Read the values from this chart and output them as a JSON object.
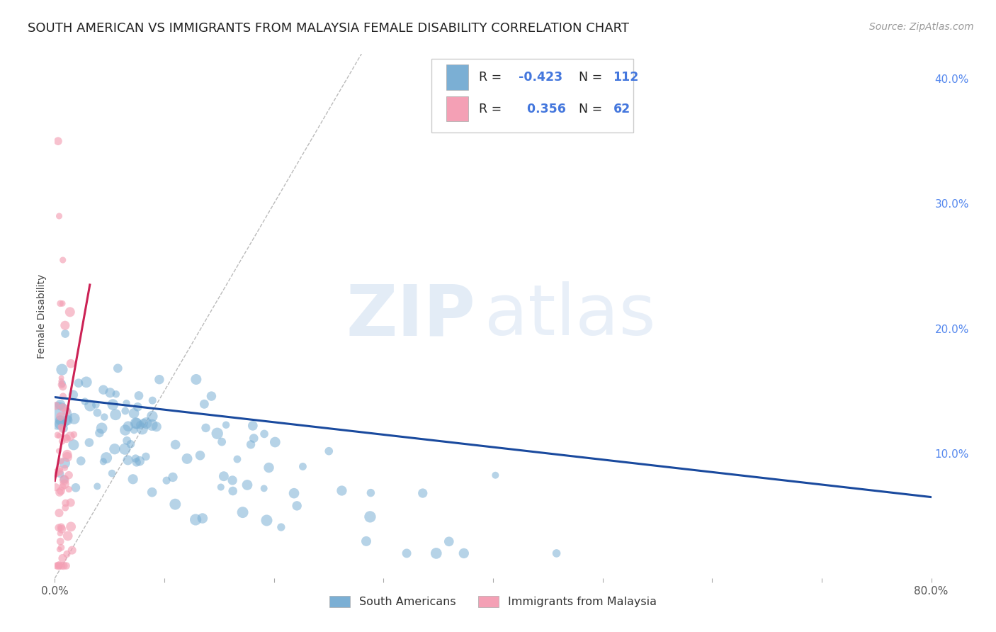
{
  "title": "SOUTH AMERICAN VS IMMIGRANTS FROM MALAYSIA FEMALE DISABILITY CORRELATION CHART",
  "source": "Source: ZipAtlas.com",
  "ylabel": "Female Disability",
  "xlim": [
    0.0,
    0.8
  ],
  "ylim": [
    0.0,
    0.42
  ],
  "yticks_right": [
    0.1,
    0.2,
    0.3,
    0.4
  ],
  "ytick_right_labels": [
    "10.0%",
    "20.0%",
    "30.0%",
    "40.0%"
  ],
  "blue_color": "#7bafd4",
  "pink_color": "#f4a0b5",
  "blue_line_color": "#1a4a9e",
  "pink_line_color": "#cc2255",
  "blue_R": -0.423,
  "blue_N": 112,
  "pink_R": 0.356,
  "pink_N": 62,
  "legend_label_blue": "South Americans",
  "legend_label_pink": "Immigrants from Malaysia",
  "watermark_zip": "ZIP",
  "watermark_atlas": "atlas",
  "background_color": "#ffffff",
  "grid_color": "#cccccc",
  "title_fontsize": 13,
  "axis_label_fontsize": 10,
  "tick_fontsize": 11,
  "source_fontsize": 10
}
